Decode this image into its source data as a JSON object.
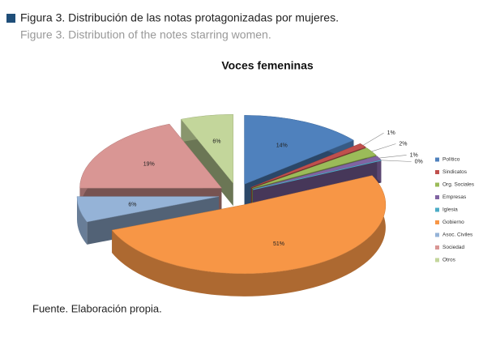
{
  "figure": {
    "caption_es": "Figura 3. Distribución de las notas protagonizadas por mujeres.",
    "caption_en": "Figure 3. Distribution of the notes starring women.",
    "source": "Fuente. Elaboración propia."
  },
  "chart_data": {
    "type": "pie",
    "title": "Voces femeninas",
    "categories": [
      "Político",
      "Sindicatos",
      "Org. Sociales",
      "Empresas",
      "Iglesia",
      "Gobierno",
      "Asoc. Civiles",
      "Sociedad",
      "Otros"
    ],
    "values": [
      14,
      1,
      2,
      1,
      0,
      51,
      6,
      19,
      6
    ],
    "value_labels": [
      "14%",
      "1%",
      "2%",
      "1%",
      "0%",
      "51%",
      "6%",
      "19%",
      "6%"
    ],
    "colors": [
      "#4f81bd",
      "#c0504d",
      "#9bbb59",
      "#8064a2",
      "#4bacc6",
      "#f79646",
      "#95b3d7",
      "#d99694",
      "#c3d69b"
    ],
    "legend": "right"
  }
}
